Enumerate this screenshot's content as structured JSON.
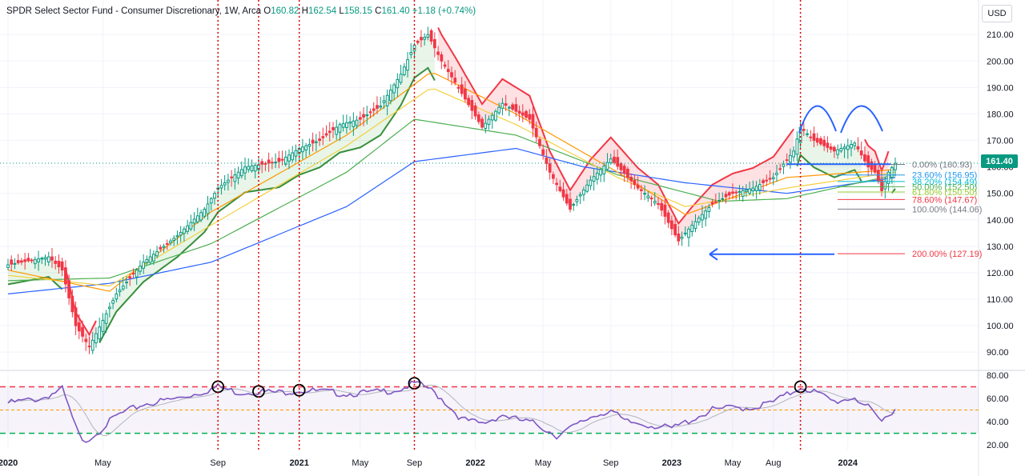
{
  "header": {
    "title": "SPDR Select Sector Fund - Consumer Discretionary, 1W, Arca",
    "o_label": "O",
    "o_value": "160.82",
    "h_label": "H",
    "h_value": "162.54",
    "l_label": "L",
    "l_value": "158.15",
    "c_label": "C",
    "c_value": "161.40",
    "change": "+1.18 (+0.74%)"
  },
  "currency_button": "USD",
  "last_price_tag": "161.40",
  "colors": {
    "up": "#089981",
    "down": "#f23645",
    "ma_blue": "#2962ff",
    "ma_green": "#4caf50",
    "ma_orange": "#ff9800",
    "ma_yellow": "#ffeb3b",
    "rsi": "#7e57c2",
    "red_dot": "#e00000"
  },
  "chart_data": [
    {
      "type": "candlestick",
      "x_type": "time",
      "x_ticks": [
        "2020",
        "May",
        "Sep",
        "2021",
        "May",
        "Sep",
        "2022",
        "May",
        "Sep",
        "2023",
        "May",
        "Aug",
        "2024"
      ],
      "y_ticks": [
        "90.00",
        "100.00",
        "110.00",
        "120.00",
        "130.00",
        "140.00",
        "150.00",
        "160.00",
        "170.00",
        "180.00",
        "190.00",
        "200.00",
        "210.00"
      ],
      "ylim": [
        84,
        214
      ],
      "price_path": [
        [
          0,
          123
        ],
        [
          12,
          126
        ],
        [
          16,
          121
        ],
        [
          20,
          100
        ],
        [
          24,
          92
        ],
        [
          32,
          112
        ],
        [
          40,
          124
        ],
        [
          50,
          134
        ],
        [
          58,
          144
        ],
        [
          62,
          152
        ],
        [
          70,
          160
        ],
        [
          80,
          162
        ],
        [
          86,
          167
        ],
        [
          92,
          170
        ],
        [
          98,
          176
        ],
        [
          104,
          178
        ],
        [
          110,
          183
        ],
        [
          116,
          195
        ],
        [
          120,
          206
        ],
        [
          124,
          210
        ],
        [
          128,
          200
        ],
        [
          132,
          192
        ],
        [
          140,
          175
        ],
        [
          146,
          184
        ],
        [
          154,
          178
        ],
        [
          160,
          158
        ],
        [
          166,
          144
        ],
        [
          172,
          155
        ],
        [
          178,
          163
        ],
        [
          186,
          152
        ],
        [
          192,
          146
        ],
        [
          198,
          132
        ],
        [
          202,
          138
        ],
        [
          208,
          146
        ],
        [
          214,
          150
        ],
        [
          220,
          152
        ],
        [
          226,
          156
        ],
        [
          232,
          166
        ],
        [
          234,
          175
        ],
        [
          238,
          170
        ],
        [
          244,
          166
        ],
        [
          250,
          169
        ],
        [
          254,
          160
        ],
        [
          256,
          158
        ],
        [
          258,
          151
        ],
        [
          260,
          158
        ],
        [
          262,
          161.4
        ]
      ],
      "moving_averages": [
        {
          "name": "MA-blue",
          "color": "#2962ff",
          "values": [
            [
              0,
              112
            ],
            [
              30,
              116
            ],
            [
              60,
              124
            ],
            [
              100,
              145
            ],
            [
              120,
              162
            ],
            [
              150,
              167
            ],
            [
              170,
              160
            ],
            [
              200,
              154
            ],
            [
              230,
              150
            ],
            [
              262,
              156
            ]
          ]
        },
        {
          "name": "MA-green",
          "color": "#4caf50",
          "values": [
            [
              0,
              117
            ],
            [
              30,
              118
            ],
            [
              60,
              131
            ],
            [
              100,
              158
            ],
            [
              120,
              178
            ],
            [
              150,
              172
            ],
            [
              180,
              157
            ],
            [
              210,
              147
            ],
            [
              230,
              148
            ],
            [
              262,
              157
            ]
          ]
        },
        {
          "name": "MA-yellow",
          "color": "#f4d03f",
          "values": [
            [
              0,
              119
            ],
            [
              30,
              115
            ],
            [
              60,
              138
            ],
            [
              100,
              168
            ],
            [
              125,
              190
            ],
            [
              150,
              176
            ],
            [
              180,
              156
            ],
            [
              200,
              145
            ],
            [
              230,
              152
            ],
            [
              262,
              158
            ]
          ]
        },
        {
          "name": "MA-orange",
          "color": "#ff9800",
          "values": [
            [
              0,
              121
            ],
            [
              30,
              113
            ],
            [
              60,
              143
            ],
            [
              100,
              172
            ],
            [
              125,
              196
            ],
            [
              150,
              180
            ],
            [
              180,
              158
            ],
            [
              200,
              142
            ],
            [
              230,
              156
            ],
            [
              262,
              159
            ]
          ]
        }
      ],
      "fib_levels": [
        {
          "label": "0.00% (160.93)",
          "value": 160.93,
          "color": "#787b86"
        },
        {
          "label": "23.60% (156.95)",
          "value": 156.95,
          "color": "#2196f3"
        },
        {
          "label": "38.20% (154.49)",
          "value": 154.49,
          "color": "#00bcd4"
        },
        {
          "label": "50.00% (152.50)",
          "value": 152.5,
          "color": "#4caf50"
        },
        {
          "label": "61.80% (150.50)",
          "value": 150.5,
          "color": "#9acd32"
        },
        {
          "label": "78.60% (147.67)",
          "value": 147.67,
          "color": "#f23645"
        },
        {
          "label": "100.00% (144.06)",
          "value": 144.06,
          "color": "#787b86"
        },
        {
          "label": "200.00% (127.19)",
          "value": 127.19,
          "color": "#f23645"
        }
      ],
      "horizontal_line": 161,
      "arrow_target": 127
    },
    {
      "type": "line",
      "indicator": "RSI",
      "y_ticks": [
        "20.00",
        "40.00",
        "60.00",
        "80.00"
      ],
      "ylim": [
        16,
        82
      ],
      "levels": [
        70,
        50,
        30
      ],
      "values": [
        [
          0,
          56
        ],
        [
          10,
          60
        ],
        [
          16,
          68
        ],
        [
          20,
          35
        ],
        [
          22,
          22
        ],
        [
          26,
          30
        ],
        [
          32,
          45
        ],
        [
          40,
          55
        ],
        [
          50,
          60
        ],
        [
          58,
          66
        ],
        [
          62,
          70
        ],
        [
          68,
          65
        ],
        [
          74,
          66
        ],
        [
          80,
          65
        ],
        [
          86,
          67
        ],
        [
          92,
          66
        ],
        [
          100,
          64
        ],
        [
          108,
          65
        ],
        [
          116,
          68
        ],
        [
          120,
          73
        ],
        [
          124,
          69
        ],
        [
          128,
          60
        ],
        [
          134,
          42
        ],
        [
          140,
          38
        ],
        [
          146,
          46
        ],
        [
          150,
          42
        ],
        [
          156,
          38
        ],
        [
          162,
          28
        ],
        [
          168,
          37
        ],
        [
          172,
          44
        ],
        [
          178,
          50
        ],
        [
          182,
          40
        ],
        [
          190,
          37
        ],
        [
          196,
          34
        ],
        [
          202,
          42
        ],
        [
          208,
          50
        ],
        [
          214,
          52
        ],
        [
          220,
          52
        ],
        [
          226,
          57
        ],
        [
          232,
          66
        ],
        [
          234,
          70
        ],
        [
          238,
          66
        ],
        [
          244,
          57
        ],
        [
          250,
          61
        ],
        [
          254,
          52
        ],
        [
          256,
          45
        ],
        [
          258,
          40
        ],
        [
          262,
          52
        ]
      ],
      "circled_peaks": [
        62,
        74,
        86,
        120,
        234
      ]
    }
  ],
  "vertical_markers": [
    62,
    74,
    86,
    120,
    234
  ],
  "time_index_ticks": [
    0,
    28,
    62,
    86,
    104,
    120,
    138,
    158,
    178,
    196,
    214,
    226,
    248
  ]
}
